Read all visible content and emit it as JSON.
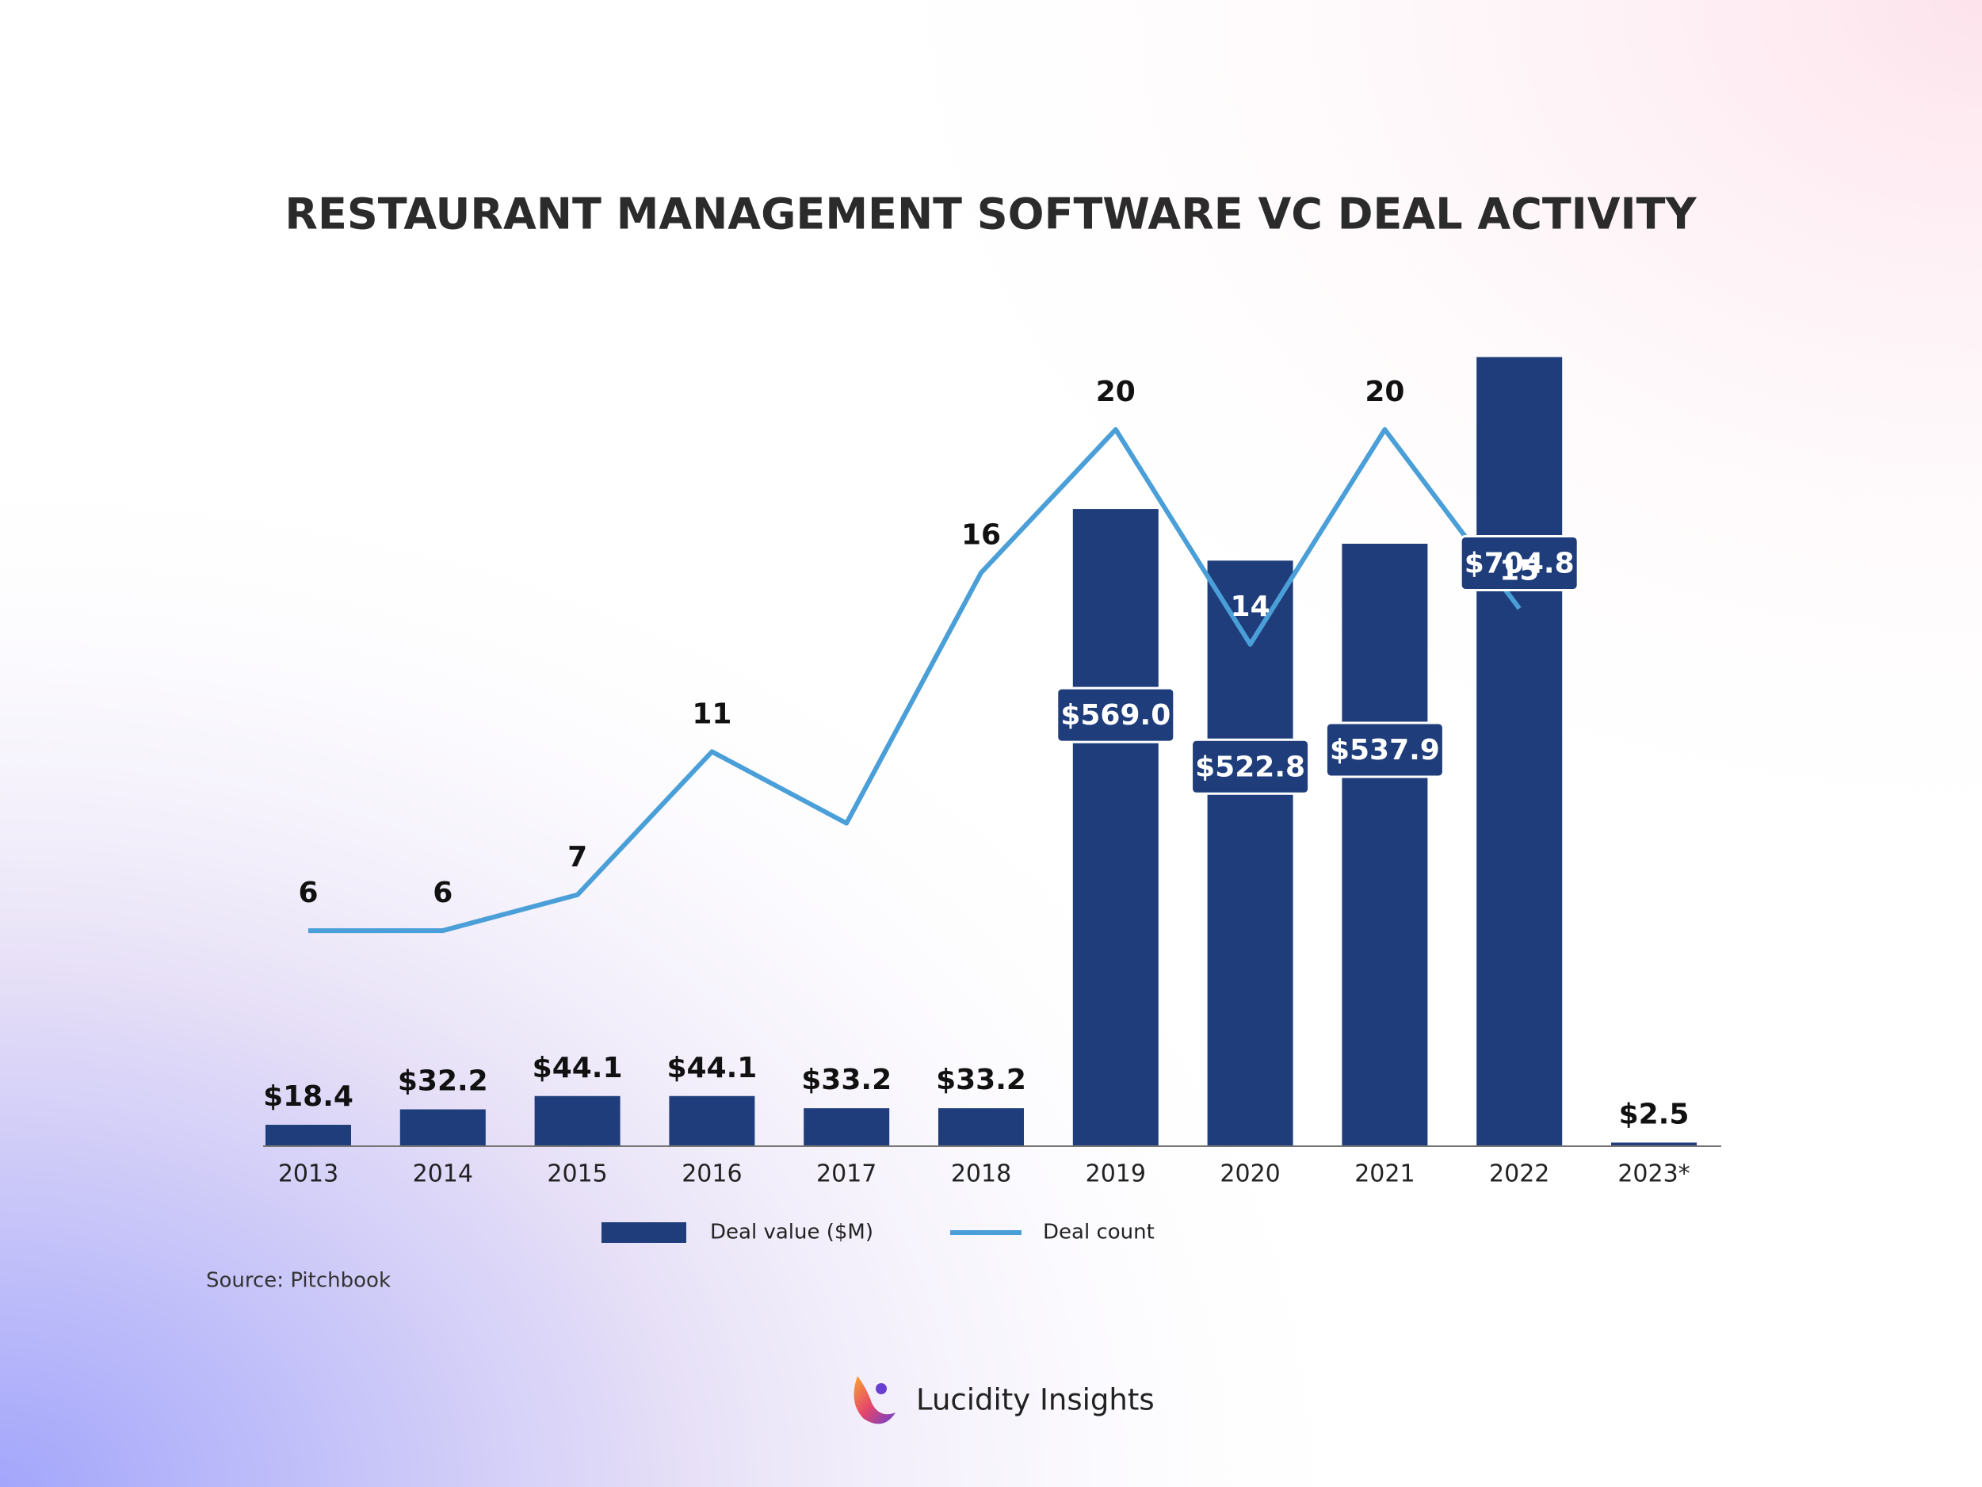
{
  "chart_data": {
    "type": "bar",
    "title": "RESTAURANT MANAGEMENT SOFTWARE VC DEAL ACTIVITY",
    "categories": [
      "2013",
      "2014",
      "2015",
      "2016",
      "2017",
      "2018",
      "2019",
      "2020",
      "2021",
      "2022",
      "2023*"
    ],
    "series": [
      {
        "name": "Deal value ($M)",
        "type": "bar",
        "color": "#1f3d7a",
        "values": [
          18.4,
          32.2,
          44.1,
          44.1,
          33.2,
          33.2,
          569.0,
          522.8,
          537.9,
          704.8,
          2.5
        ],
        "value_labels": [
          "$18.4",
          "$32.2",
          "$44.1",
          "$44.1",
          "$33.2",
          "$33.2",
          "$569.0",
          "$522.8",
          "$537.9",
          "$704.8",
          "$2.5"
        ]
      },
      {
        "name": "Deal count",
        "type": "line",
        "axis": "y2",
        "color": "#4a9fd8",
        "values": [
          6,
          6,
          7,
          11,
          9,
          16,
          20,
          14,
          20,
          15,
          null
        ],
        "value_labels": [
          "6",
          "6",
          "7",
          "11",
          null,
          "16",
          "20",
          "14",
          "20",
          "15",
          null
        ]
      }
    ],
    "ylim": [
      0,
      720
    ],
    "y2lim": [
      0,
      22.5
    ],
    "source": "Source: Pitchbook",
    "brand": "Lucidity Insights"
  }
}
